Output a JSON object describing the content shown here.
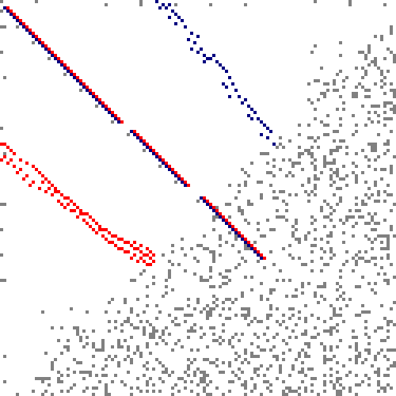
{
  "grid": {
    "columns": 125,
    "rows": 125
  },
  "colors": {
    "background": "#ffffff",
    "scatter": "#808080",
    "red": "#ff0000",
    "navy": "#00007f"
  },
  "features": {
    "diagonal_pairs": [
      {
        "x0": 1,
        "y0": 2,
        "x1": 37,
        "y1": 38
      },
      {
        "x0": 41,
        "y0": 41,
        "x1": 58,
        "y1": 58
      },
      {
        "x0": 63,
        "y0": 62,
        "x1": 82,
        "y1": 82
      }
    ],
    "navy_trail": [
      {
        "x": 49,
        "y": 0
      },
      {
        "x": 51,
        "y": 1
      },
      {
        "x": 50,
        "y": 2
      },
      {
        "x": 52,
        "y": 2
      },
      {
        "x": 53,
        "y": 1
      },
      {
        "x": 54,
        "y": 3
      },
      {
        "x": 55,
        "y": 4
      },
      {
        "x": 53,
        "y": 5
      },
      {
        "x": 56,
        "y": 5
      },
      {
        "x": 57,
        "y": 6
      },
      {
        "x": 55,
        "y": 7
      },
      {
        "x": 58,
        "y": 8
      },
      {
        "x": 60,
        "y": 10
      },
      {
        "x": 62,
        "y": 11
      },
      {
        "x": 61,
        "y": 13
      },
      {
        "x": 60,
        "y": 15
      },
      {
        "x": 62,
        "y": 16
      },
      {
        "x": 63,
        "y": 15
      },
      {
        "x": 64,
        "y": 17
      },
      {
        "x": 65,
        "y": 18
      },
      {
        "x": 66,
        "y": 18
      },
      {
        "x": 67,
        "y": 17
      },
      {
        "x": 68,
        "y": 19
      },
      {
        "x": 69,
        "y": 20
      },
      {
        "x": 70,
        "y": 21
      },
      {
        "x": 71,
        "y": 22
      },
      {
        "x": 72,
        "y": 24
      },
      {
        "x": 70,
        "y": 26
      },
      {
        "x": 73,
        "y": 26
      },
      {
        "x": 74,
        "y": 28
      },
      {
        "x": 72,
        "y": 30
      },
      {
        "x": 75,
        "y": 30
      },
      {
        "x": 76,
        "y": 32
      },
      {
        "x": 77,
        "y": 31
      },
      {
        "x": 78,
        "y": 33
      },
      {
        "x": 79,
        "y": 34
      },
      {
        "x": 80,
        "y": 35
      },
      {
        "x": 78,
        "y": 36
      },
      {
        "x": 81,
        "y": 37
      },
      {
        "x": 82,
        "y": 38
      },
      {
        "x": 83,
        "y": 39
      },
      {
        "x": 84,
        "y": 40
      },
      {
        "x": 85,
        "y": 41
      },
      {
        "x": 86,
        "y": 45
      },
      {
        "x": 59,
        "y": 12
      },
      {
        "x": 64,
        "y": 19
      },
      {
        "x": 71,
        "y": 27
      },
      {
        "x": 79,
        "y": 37
      },
      {
        "x": 82,
        "y": 42
      },
      {
        "x": 84,
        "y": 43
      }
    ],
    "red_cluster": [
      {
        "x": 0,
        "y": 45
      },
      {
        "x": 1,
        "y": 45
      },
      {
        "x": 2,
        "y": 46
      },
      {
        "x": 3,
        "y": 47
      },
      {
        "x": 4,
        "y": 48
      },
      {
        "x": 0,
        "y": 50
      },
      {
        "x": 2,
        "y": 51
      },
      {
        "x": 4,
        "y": 52
      },
      {
        "x": 6,
        "y": 50
      },
      {
        "x": 8,
        "y": 51
      },
      {
        "x": 10,
        "y": 52
      },
      {
        "x": 11,
        "y": 53
      },
      {
        "x": 12,
        "y": 54
      },
      {
        "x": 13,
        "y": 55
      },
      {
        "x": 14,
        "y": 56
      },
      {
        "x": 15,
        "y": 57
      },
      {
        "x": 16,
        "y": 58
      },
      {
        "x": 17,
        "y": 59
      },
      {
        "x": 18,
        "y": 60
      },
      {
        "x": 19,
        "y": 61
      },
      {
        "x": 20,
        "y": 62
      },
      {
        "x": 21,
        "y": 62
      },
      {
        "x": 22,
        "y": 63
      },
      {
        "x": 23,
        "y": 64
      },
      {
        "x": 24,
        "y": 65
      },
      {
        "x": 25,
        "y": 66
      },
      {
        "x": 26,
        "y": 67
      },
      {
        "x": 27,
        "y": 67
      },
      {
        "x": 28,
        "y": 68
      },
      {
        "x": 29,
        "y": 69
      },
      {
        "x": 30,
        "y": 70
      },
      {
        "x": 31,
        "y": 71
      },
      {
        "x": 32,
        "y": 72
      },
      {
        "x": 33,
        "y": 72
      },
      {
        "x": 34,
        "y": 73
      },
      {
        "x": 35,
        "y": 74
      },
      {
        "x": 36,
        "y": 74
      },
      {
        "x": 37,
        "y": 75
      },
      {
        "x": 38,
        "y": 75
      },
      {
        "x": 39,
        "y": 76
      },
      {
        "x": 40,
        "y": 76
      },
      {
        "x": 41,
        "y": 77
      },
      {
        "x": 42,
        "y": 78
      },
      {
        "x": 43,
        "y": 78
      },
      {
        "x": 44,
        "y": 79
      },
      {
        "x": 45,
        "y": 80
      },
      {
        "x": 46,
        "y": 80
      },
      {
        "x": 47,
        "y": 81
      },
      {
        "x": 48,
        "y": 82
      },
      {
        "x": 47,
        "y": 83
      },
      {
        "x": 5,
        "y": 54
      },
      {
        "x": 7,
        "y": 56
      },
      {
        "x": 9,
        "y": 58
      },
      {
        "x": 12,
        "y": 59
      },
      {
        "x": 14,
        "y": 60
      },
      {
        "x": 16,
        "y": 61
      },
      {
        "x": 18,
        "y": 63
      },
      {
        "x": 20,
        "y": 65
      },
      {
        "x": 22,
        "y": 66
      },
      {
        "x": 24,
        "y": 68
      },
      {
        "x": 26,
        "y": 69
      },
      {
        "x": 28,
        "y": 71
      },
      {
        "x": 30,
        "y": 73
      },
      {
        "x": 32,
        "y": 74
      },
      {
        "x": 34,
        "y": 76
      },
      {
        "x": 36,
        "y": 77
      },
      {
        "x": 38,
        "y": 78
      },
      {
        "x": 40,
        "y": 79
      },
      {
        "x": 42,
        "y": 80
      },
      {
        "x": 44,
        "y": 81
      },
      {
        "x": 1,
        "y": 49
      },
      {
        "x": 3,
        "y": 50
      },
      {
        "x": 6,
        "y": 53
      },
      {
        "x": 8,
        "y": 55
      },
      {
        "x": 10,
        "y": 57
      },
      {
        "x": 13,
        "y": 57
      },
      {
        "x": 15,
        "y": 59
      },
      {
        "x": 17,
        "y": 60
      },
      {
        "x": 19,
        "y": 64
      },
      {
        "x": 21,
        "y": 64
      },
      {
        "x": 23,
        "y": 66
      },
      {
        "x": 25,
        "y": 67
      },
      {
        "x": 27,
        "y": 70
      },
      {
        "x": 29,
        "y": 72
      },
      {
        "x": 31,
        "y": 72
      },
      {
        "x": 33,
        "y": 75
      },
      {
        "x": 35,
        "y": 76
      },
      {
        "x": 37,
        "y": 78
      },
      {
        "x": 39,
        "y": 79
      },
      {
        "x": 41,
        "y": 81
      },
      {
        "x": 43,
        "y": 82
      },
      {
        "x": 45,
        "y": 82
      },
      {
        "x": 46,
        "y": 83
      },
      {
        "x": 42,
        "y": 76
      },
      {
        "x": 44,
        "y": 77
      },
      {
        "x": 46,
        "y": 78
      },
      {
        "x": 47,
        "y": 79
      },
      {
        "x": 48,
        "y": 80
      }
    ]
  }
}
